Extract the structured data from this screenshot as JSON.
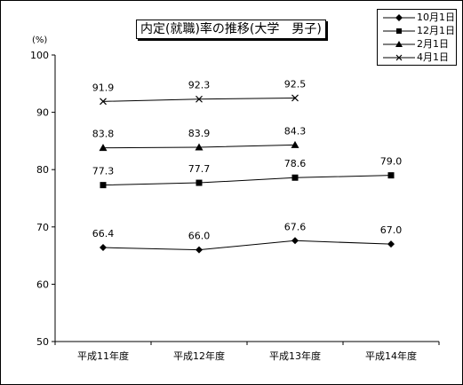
{
  "chart_data": {
    "type": "line",
    "title": "内定(就職)率の推移(大学　男子)",
    "ylabel": "(%)",
    "xlabel": "",
    "categories": [
      "平成11年度",
      "平成12年度",
      "平成13年度",
      "平成14年度"
    ],
    "ylim": [
      50,
      100
    ],
    "yticks": [
      50,
      60,
      70,
      80,
      90,
      100
    ],
    "grid": false,
    "legend": "top-right",
    "series": [
      {
        "name": "10月1日",
        "marker": "diamond",
        "values": [
          66.4,
          66.0,
          67.6,
          67.0
        ],
        "labels": [
          "66.4",
          "66.0",
          "67.6",
          "67.0"
        ]
      },
      {
        "name": "12月1日",
        "marker": "square",
        "values": [
          77.3,
          77.7,
          78.6,
          79.0
        ],
        "labels": [
          "77.3",
          "77.7",
          "78.6",
          "79.0"
        ]
      },
      {
        "name": "2月1日",
        "marker": "triangle",
        "values": [
          83.8,
          83.9,
          84.3,
          null
        ],
        "labels": [
          "83.8",
          "83.9",
          "84.3",
          ""
        ]
      },
      {
        "name": "4月1日",
        "marker": "x",
        "values": [
          91.9,
          92.3,
          92.5,
          null
        ],
        "labels": [
          "91.9",
          "92.3",
          "92.5",
          ""
        ]
      }
    ],
    "colors": {
      "line": "#000000",
      "background": "#ffffff"
    }
  }
}
